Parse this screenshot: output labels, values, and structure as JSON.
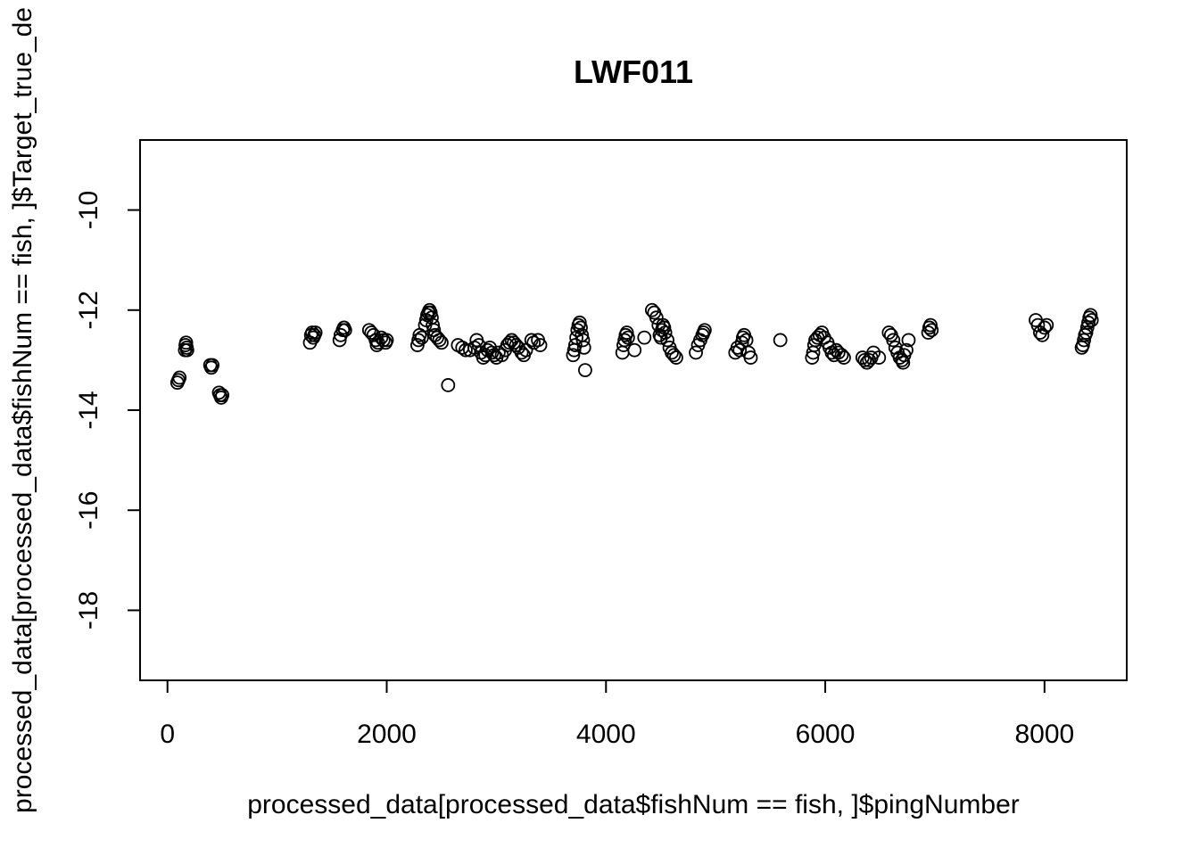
{
  "chart_data": {
    "type": "scatter",
    "title": "LWF011",
    "xlabel": "processed_data[processed_data$fishNum == fish, ]$pingNumber",
    "ylabel": "processed_data[processed_data$fishNum == fish, ]$Target_true_de",
    "xlim": [
      -250,
      8750
    ],
    "ylim": [
      -19.4,
      -8.6
    ],
    "x_ticks": [
      0,
      2000,
      4000,
      6000,
      8000
    ],
    "y_ticks": [
      -10,
      -12,
      -14,
      -16,
      -18
    ],
    "marker": "open-circle",
    "grid": false,
    "points": [
      [
        90,
        -13.45
      ],
      [
        100,
        -13.4
      ],
      [
        110,
        -13.35
      ],
      [
        160,
        -12.8
      ],
      [
        165,
        -12.7
      ],
      [
        170,
        -12.65
      ],
      [
        175,
        -12.75
      ],
      [
        180,
        -12.8
      ],
      [
        390,
        -13.1
      ],
      [
        400,
        -13.15
      ],
      [
        410,
        -13.1
      ],
      [
        470,
        -13.65
      ],
      [
        480,
        -13.7
      ],
      [
        490,
        -13.75
      ],
      [
        500,
        -13.7
      ],
      [
        1300,
        -12.65
      ],
      [
        1310,
        -12.5
      ],
      [
        1320,
        -12.45
      ],
      [
        1330,
        -12.55
      ],
      [
        1340,
        -12.5
      ],
      [
        1350,
        -12.45
      ],
      [
        1570,
        -12.6
      ],
      [
        1580,
        -12.5
      ],
      [
        1600,
        -12.4
      ],
      [
        1610,
        -12.35
      ],
      [
        1620,
        -12.4
      ],
      [
        1840,
        -12.4
      ],
      [
        1860,
        -12.45
      ],
      [
        1880,
        -12.5
      ],
      [
        1900,
        -12.6
      ],
      [
        1910,
        -12.7
      ],
      [
        1920,
        -12.65
      ],
      [
        1950,
        -12.55
      ],
      [
        1970,
        -12.6
      ],
      [
        1990,
        -12.65
      ],
      [
        2000,
        -12.6
      ],
      [
        2280,
        -12.7
      ],
      [
        2290,
        -12.6
      ],
      [
        2300,
        -12.5
      ],
      [
        2320,
        -12.55
      ],
      [
        2350,
        -12.3
      ],
      [
        2360,
        -12.2
      ],
      [
        2370,
        -12.1
      ],
      [
        2380,
        -12.05
      ],
      [
        2390,
        -12.0
      ],
      [
        2400,
        -12.05
      ],
      [
        2410,
        -12.15
      ],
      [
        2420,
        -12.3
      ],
      [
        2430,
        -12.4
      ],
      [
        2440,
        -12.5
      ],
      [
        2460,
        -12.55
      ],
      [
        2480,
        -12.6
      ],
      [
        2500,
        -12.65
      ],
      [
        2560,
        -13.5
      ],
      [
        2650,
        -12.7
      ],
      [
        2690,
        -12.75
      ],
      [
        2720,
        -12.8
      ],
      [
        2760,
        -12.8
      ],
      [
        2800,
        -12.75
      ],
      [
        2820,
        -12.6
      ],
      [
        2840,
        -12.7
      ],
      [
        2860,
        -12.85
      ],
      [
        2880,
        -12.95
      ],
      [
        2900,
        -12.9
      ],
      [
        2920,
        -12.8
      ],
      [
        2940,
        -12.75
      ],
      [
        2960,
        -12.85
      ],
      [
        2980,
        -12.9
      ],
      [
        3000,
        -12.95
      ],
      [
        3020,
        -12.85
      ],
      [
        3050,
        -12.9
      ],
      [
        3080,
        -12.8
      ],
      [
        3100,
        -12.7
      ],
      [
        3120,
        -12.65
      ],
      [
        3140,
        -12.6
      ],
      [
        3160,
        -12.65
      ],
      [
        3180,
        -12.7
      ],
      [
        3200,
        -12.75
      ],
      [
        3230,
        -12.85
      ],
      [
        3250,
        -12.9
      ],
      [
        3270,
        -12.8
      ],
      [
        3320,
        -12.6
      ],
      [
        3340,
        -12.65
      ],
      [
        3380,
        -12.6
      ],
      [
        3400,
        -12.7
      ],
      [
        3700,
        -12.9
      ],
      [
        3710,
        -12.8
      ],
      [
        3720,
        -12.7
      ],
      [
        3730,
        -12.55
      ],
      [
        3740,
        -12.4
      ],
      [
        3750,
        -12.3
      ],
      [
        3760,
        -12.25
      ],
      [
        3770,
        -12.35
      ],
      [
        3780,
        -12.5
      ],
      [
        3790,
        -12.6
      ],
      [
        3800,
        -12.75
      ],
      [
        3810,
        -13.2
      ],
      [
        4150,
        -12.85
      ],
      [
        4160,
        -12.7
      ],
      [
        4170,
        -12.6
      ],
      [
        4180,
        -12.5
      ],
      [
        4190,
        -12.45
      ],
      [
        4200,
        -12.55
      ],
      [
        4260,
        -12.8
      ],
      [
        4350,
        -12.55
      ],
      [
        4420,
        -12.0
      ],
      [
        4440,
        -12.05
      ],
      [
        4460,
        -12.15
      ],
      [
        4480,
        -12.3
      ],
      [
        4490,
        -12.5
      ],
      [
        4500,
        -12.55
      ],
      [
        4510,
        -12.4
      ],
      [
        4520,
        -12.3
      ],
      [
        4530,
        -12.35
      ],
      [
        4540,
        -12.45
      ],
      [
        4560,
        -12.6
      ],
      [
        4580,
        -12.75
      ],
      [
        4600,
        -12.85
      ],
      [
        4620,
        -12.9
      ],
      [
        4640,
        -12.95
      ],
      [
        4820,
        -12.85
      ],
      [
        4840,
        -12.7
      ],
      [
        4860,
        -12.6
      ],
      [
        4880,
        -12.5
      ],
      [
        4890,
        -12.45
      ],
      [
        4900,
        -12.4
      ],
      [
        5180,
        -12.85
      ],
      [
        5200,
        -12.75
      ],
      [
        5220,
        -12.8
      ],
      [
        5240,
        -12.65
      ],
      [
        5250,
        -12.55
      ],
      [
        5260,
        -12.5
      ],
      [
        5280,
        -12.6
      ],
      [
        5300,
        -12.85
      ],
      [
        5320,
        -12.95
      ],
      [
        5590,
        -12.6
      ],
      [
        5880,
        -12.95
      ],
      [
        5890,
        -12.85
      ],
      [
        5900,
        -12.7
      ],
      [
        5910,
        -12.6
      ],
      [
        5930,
        -12.55
      ],
      [
        5950,
        -12.5
      ],
      [
        5970,
        -12.45
      ],
      [
        5990,
        -12.55
      ],
      [
        6020,
        -12.65
      ],
      [
        6040,
        -12.75
      ],
      [
        6060,
        -12.85
      ],
      [
        6080,
        -12.9
      ],
      [
        6100,
        -12.8
      ],
      [
        6120,
        -12.85
      ],
      [
        6150,
        -12.9
      ],
      [
        6170,
        -12.95
      ],
      [
        6340,
        -12.95
      ],
      [
        6360,
        -13.0
      ],
      [
        6380,
        -13.05
      ],
      [
        6400,
        -13.0
      ],
      [
        6420,
        -12.95
      ],
      [
        6440,
        -12.85
      ],
      [
        6490,
        -12.95
      ],
      [
        6580,
        -12.45
      ],
      [
        6600,
        -12.5
      ],
      [
        6620,
        -12.6
      ],
      [
        6640,
        -12.75
      ],
      [
        6660,
        -12.85
      ],
      [
        6680,
        -12.95
      ],
      [
        6700,
        -13.0
      ],
      [
        6710,
        -13.05
      ],
      [
        6720,
        -12.9
      ],
      [
        6740,
        -12.8
      ],
      [
        6760,
        -12.6
      ],
      [
        6940,
        -12.45
      ],
      [
        6950,
        -12.35
      ],
      [
        6960,
        -12.3
      ],
      [
        6970,
        -12.4
      ],
      [
        7920,
        -12.2
      ],
      [
        7940,
        -12.3
      ],
      [
        7960,
        -12.45
      ],
      [
        7980,
        -12.5
      ],
      [
        8000,
        -12.35
      ],
      [
        8020,
        -12.3
      ],
      [
        8340,
        -12.75
      ],
      [
        8350,
        -12.7
      ],
      [
        8360,
        -12.6
      ],
      [
        8370,
        -12.5
      ],
      [
        8380,
        -12.45
      ],
      [
        8390,
        -12.35
      ],
      [
        8400,
        -12.25
      ],
      [
        8410,
        -12.15
      ],
      [
        8420,
        -12.1
      ],
      [
        8430,
        -12.2
      ]
    ]
  }
}
